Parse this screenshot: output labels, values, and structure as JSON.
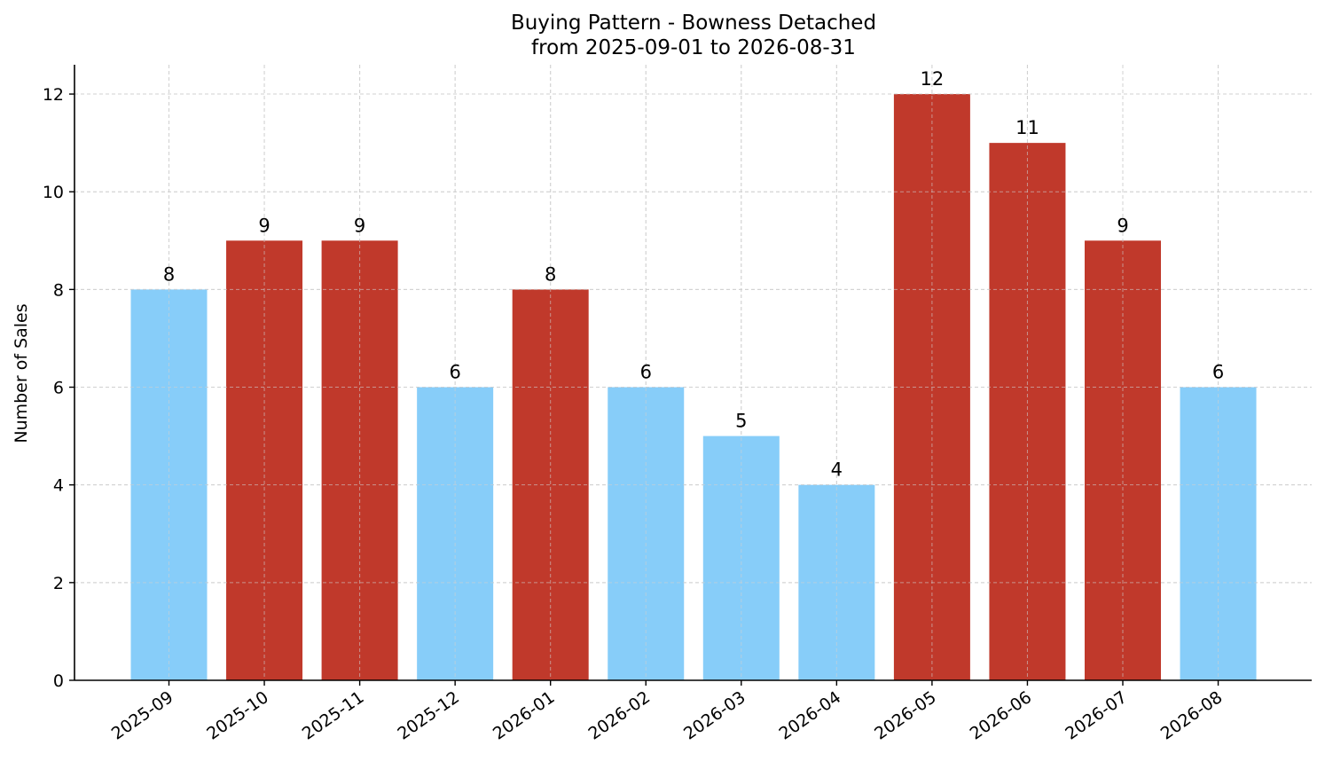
{
  "chart_data": {
    "type": "bar",
    "title": "Buying Pattern - Bowness Detached",
    "subtitle": "from 2025-09-01 to 2026-08-31",
    "xlabel": "",
    "ylabel": "Number of Sales",
    "categories": [
      "2025-09",
      "2025-10",
      "2025-11",
      "2025-12",
      "2026-01",
      "2026-02",
      "2026-03",
      "2026-04",
      "2026-05",
      "2026-06",
      "2026-07",
      "2026-08"
    ],
    "values": [
      8,
      9,
      9,
      6,
      8,
      6,
      5,
      4,
      12,
      11,
      9,
      6
    ],
    "bar_colors": [
      "#87cdf9",
      "#c0392b",
      "#c0392b",
      "#87cdf9",
      "#c0392b",
      "#87cdf9",
      "#87cdf9",
      "#87cdf9",
      "#c0392b",
      "#c0392b",
      "#c0392b",
      "#87cdf9"
    ],
    "ylim": [
      0,
      12.6
    ],
    "yticks": [
      0,
      2,
      4,
      6,
      8,
      10,
      12
    ],
    "grid": true,
    "legend": "none",
    "data_labels": true
  }
}
